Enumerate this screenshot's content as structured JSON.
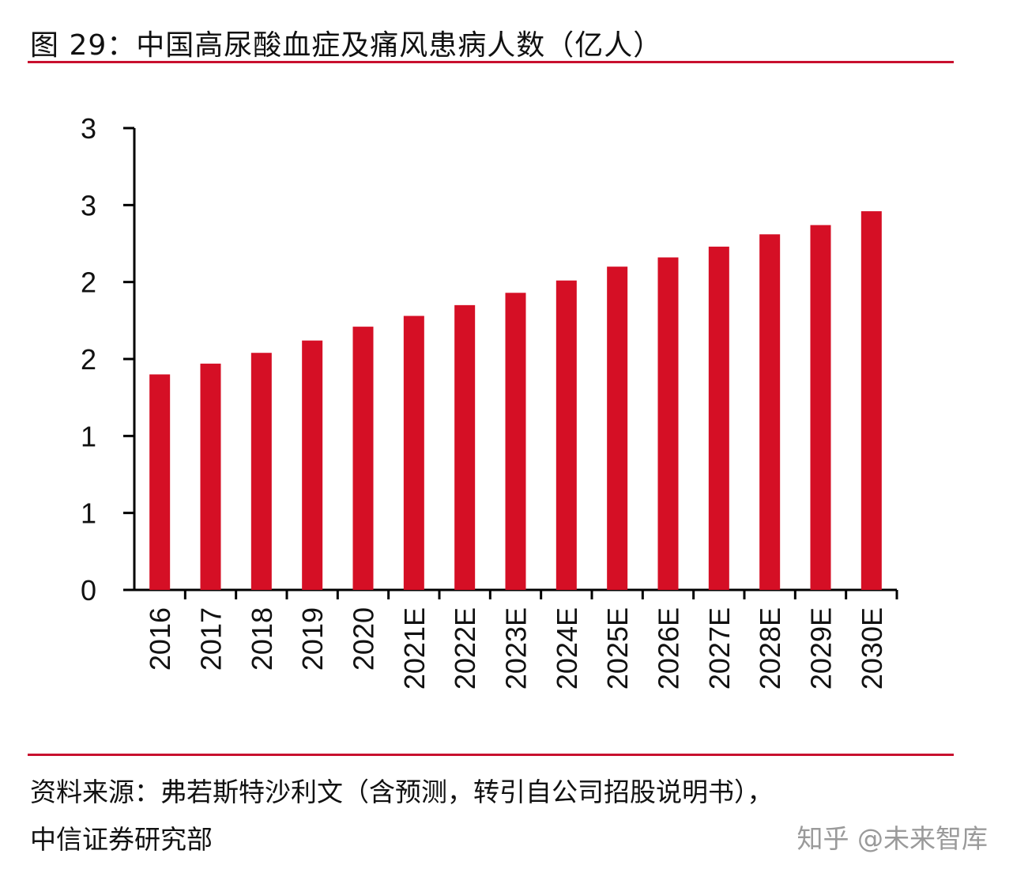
{
  "title": "图 29：中国高尿酸血症及痛风患病人数（亿人）",
  "source_line1": "资料来源：弗若斯特沙利文（含预测，转引自公司招股说明书），",
  "source_line2": "中信证券研究部",
  "watermark": "知乎 @未来智库",
  "colors": {
    "bar": "#d50f25",
    "rule": "#c8102e"
  },
  "chart_data": {
    "type": "bar",
    "title": "图 29：中国高尿酸血症及痛风患病人数（亿人）",
    "categories": [
      "2016",
      "2017",
      "2018",
      "2019",
      "2020",
      "2021E",
      "2022E",
      "2023E",
      "2024E",
      "2025E",
      "2026E",
      "2027E",
      "2028E",
      "2029E",
      "2030E"
    ],
    "values": [
      1.4,
      1.47,
      1.54,
      1.62,
      1.71,
      1.78,
      1.85,
      1.93,
      2.01,
      2.1,
      2.16,
      2.23,
      2.31,
      2.37,
      2.46
    ],
    "ylim": [
      0,
      3
    ],
    "yticks": [
      0,
      0.5,
      1,
      1.5,
      2,
      2.5,
      3
    ],
    "ytick_labels": [
      "0",
      "1",
      "1",
      "2",
      "2",
      "3",
      "3"
    ],
    "grid": false,
    "xlabel": "",
    "ylabel": ""
  }
}
